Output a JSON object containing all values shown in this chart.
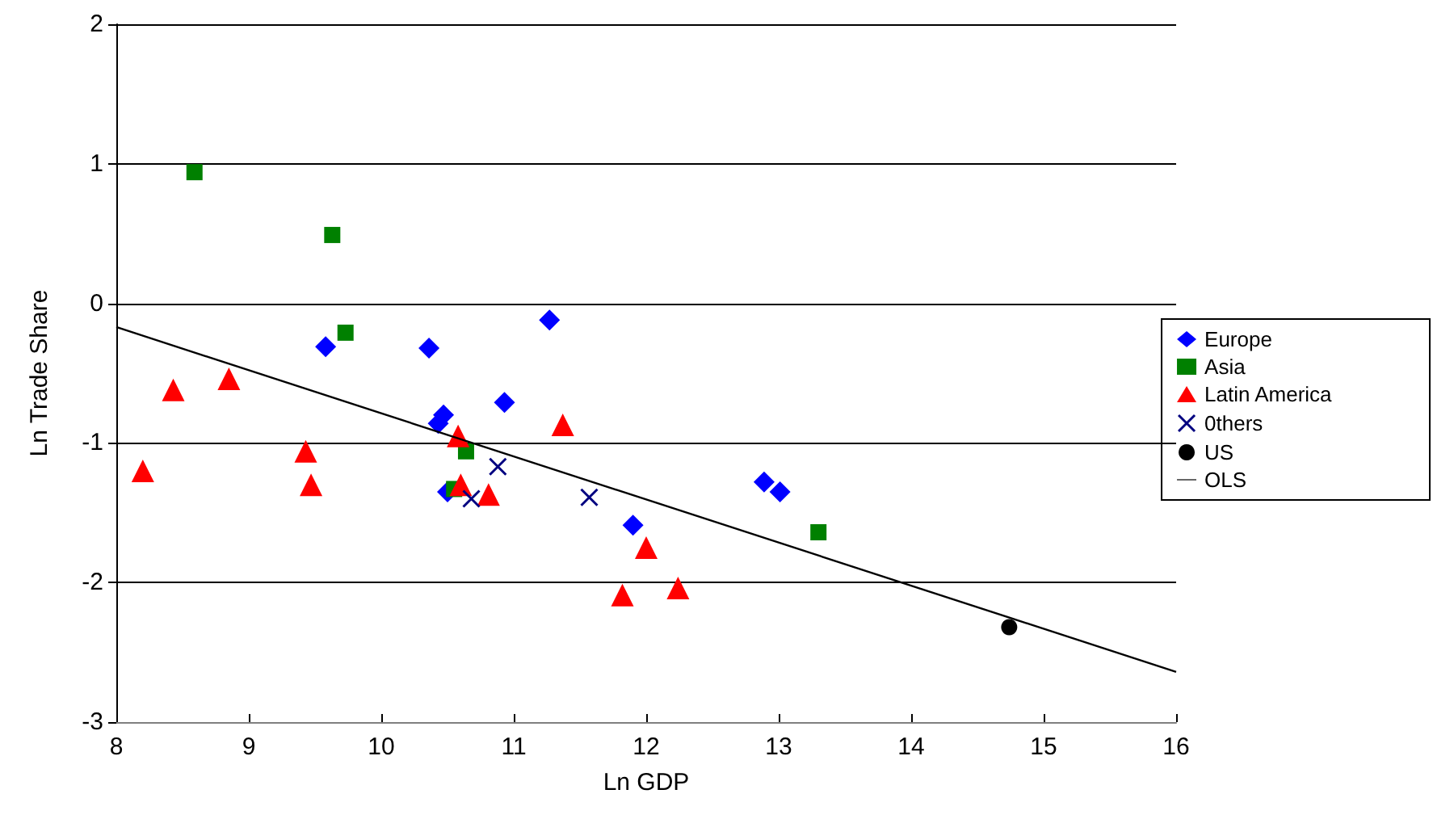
{
  "chart_data": {
    "type": "scatter",
    "xlabel": "Ln GDP",
    "ylabel": "Ln Trade Share",
    "xlim": [
      8,
      16
    ],
    "xticks": [
      8,
      9,
      10,
      11,
      12,
      13,
      14,
      15,
      16
    ],
    "ylim": [
      -3,
      2
    ],
    "yticks": [
      -3,
      -2,
      -1,
      0,
      1,
      2
    ],
    "grid": "y",
    "legend": "right",
    "series": [
      {
        "name": "Europe",
        "color": "#0000ff",
        "marker": "diamond",
        "x": [
          9.58,
          10.36,
          11.27,
          10.93,
          10.47,
          10.43,
          10.5,
          11.9,
          12.89,
          13.01
        ],
        "values": [
          -0.31,
          -0.32,
          -0.12,
          -0.71,
          -0.8,
          -0.86,
          -1.35,
          -1.59,
          -1.28,
          -1.35
        ]
      },
      {
        "name": "Asia",
        "color": "#008000",
        "marker": "square",
        "x": [
          8.59,
          9.63,
          9.73,
          10.64,
          10.55,
          13.3
        ],
        "values": [
          0.94,
          0.49,
          -0.21,
          -1.06,
          -1.33,
          -1.64
        ]
      },
      {
        "name": "Latin America",
        "color": "#ff0000",
        "marker": "triangle",
        "x": [
          8.2,
          8.43,
          8.85,
          9.43,
          9.47,
          10.58,
          10.6,
          10.81,
          11.37,
          12.0,
          11.82,
          12.24
        ],
        "values": [
          -1.2,
          -0.62,
          -0.54,
          -1.06,
          -1.3,
          -0.95,
          -1.3,
          -1.37,
          -0.87,
          -1.75,
          -2.09,
          -2.04
        ]
      },
      {
        "name": "0thers",
        "color": "#000080",
        "marker": "cross",
        "x": [
          10.88,
          10.68,
          11.57
        ],
        "values": [
          -1.17,
          -1.4,
          -1.39
        ]
      },
      {
        "name": "US",
        "color": "#000000",
        "marker": "circle",
        "x": [
          14.74
        ],
        "values": [
          -2.32
        ]
      },
      {
        "name": "OLS",
        "type": "line",
        "color": "#000000",
        "marker": "none",
        "x": [
          8,
          16
        ],
        "values": [
          -0.17,
          -2.64
        ]
      }
    ]
  }
}
